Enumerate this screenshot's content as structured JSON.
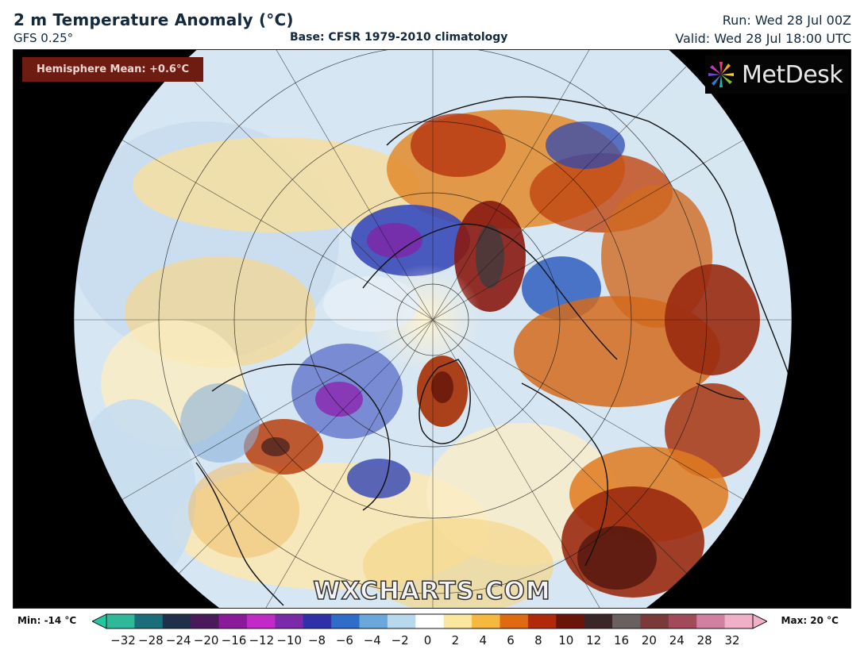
{
  "header": {
    "title": "2 m Temperature Anomaly (°C)",
    "model": "GFS 0.25°",
    "base": "Base: CFSR 1979-2010 climatology",
    "run": "Run: Wed 28 Jul 00Z",
    "valid": "Valid: Wed 28 Jul 18:00 UTC"
  },
  "map": {
    "hemisphere_mean": "Hemisphere Mean: +0.6°C",
    "brand": "MetDesk",
    "watermark": "WXCHARTS.COM"
  },
  "colorbar": {
    "min_label": "Min: -14 °C",
    "max_label": "Max: 20 °C",
    "ticks": [
      "−32",
      "−28",
      "−24",
      "−20",
      "−16",
      "−12",
      "−10",
      "−8",
      "−6",
      "−4",
      "−2",
      "0",
      "2",
      "4",
      "6",
      "8",
      "10",
      "12",
      "16",
      "20",
      "24",
      "28",
      "32"
    ],
    "colors": [
      "#2fb89a",
      "#1a6e7a",
      "#20304a",
      "#4a1a5a",
      "#8a1a9a",
      "#c22ac8",
      "#7a2aa8",
      "#3030a8",
      "#2f6ec8",
      "#6aa8dc",
      "#b8d8ee",
      "#ffffff",
      "#fbe7a0",
      "#f5b940",
      "#e06a10",
      "#b02a0a",
      "#6a140a",
      "#3a2626",
      "#6a6060",
      "#7a3a3a",
      "#a04a5a",
      "#d080a0",
      "#f0b0c8"
    ]
  }
}
